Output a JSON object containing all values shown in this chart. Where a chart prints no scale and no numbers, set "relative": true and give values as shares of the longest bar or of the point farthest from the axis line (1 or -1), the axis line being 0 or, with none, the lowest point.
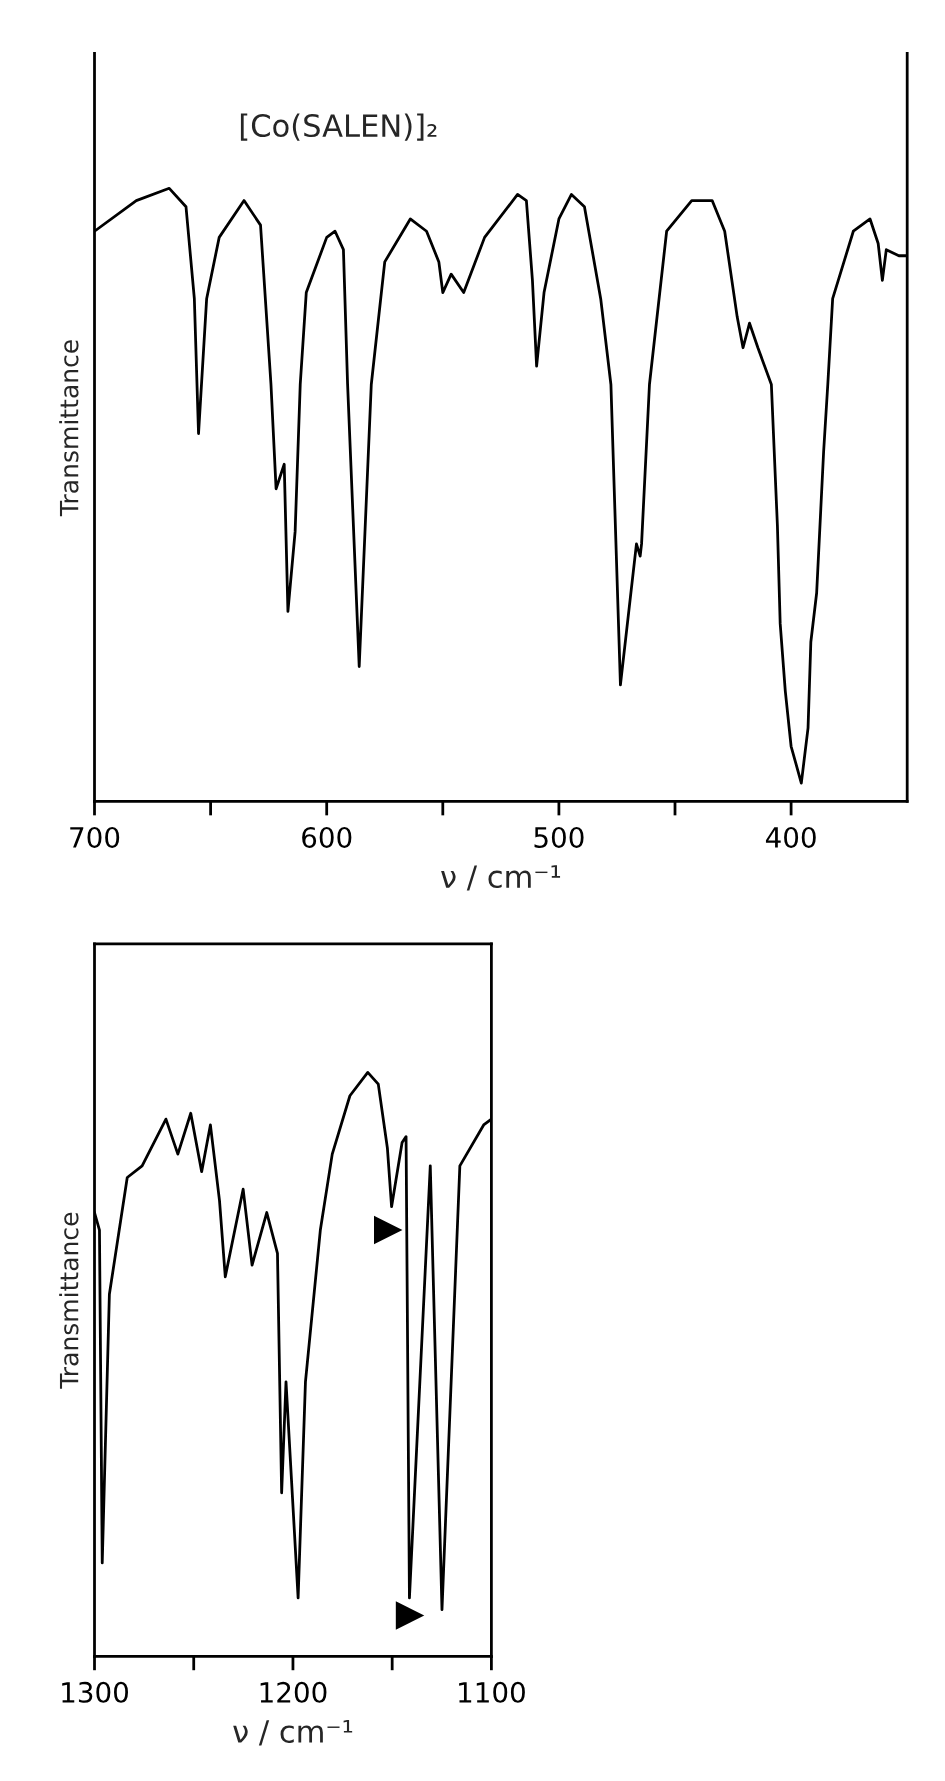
{
  "chart_data": [
    {
      "type": "line",
      "relative": true,
      "xlabel": "ν / cm⁻¹",
      "ylabel": "Transmittance",
      "xlim": [
        700,
        350
      ],
      "xticks": [
        700,
        {
          "value": 650,
          "label": null
        },
        600,
        {
          "value": 550,
          "label": null
        },
        500,
        {
          "value": 450,
          "label": null
        },
        400
      ],
      "annotations": [
        "[Co(SALEN)]₂"
      ],
      "x": [
        700,
        682,
        667.8,
        660.6,
        657,
        655.2,
        651.7,
        646.3,
        635.6,
        628.5,
        624,
        621.8,
        618.3,
        616.7,
        613.6,
        611.4,
        608.8,
        600,
        596.4,
        592.8,
        591,
        586,
        580.8,
        575,
        564,
        557,
        551.7,
        550,
        546.4,
        541,
        532,
        517.8,
        514,
        511.4,
        509.6,
        506.4,
        500,
        494.6,
        489,
        482,
        477.6,
        473.5,
        466.6,
        465,
        464.4,
        461,
        453.6,
        442.8,
        434,
        428.6,
        423.2,
        420.7,
        417.9,
        414.3,
        408.5,
        405.9,
        404.7,
        402.5,
        400,
        395.6,
        392.7,
        391.5,
        389,
        386,
        384.2,
        382.1,
        373.2,
        366,
        362.5,
        360.7,
        359,
        353.6,
        350
      ],
      "series": [
        {
          "color": "#000000",
          "values": [
            0.93,
            0.98,
            1.0,
            0.97,
            0.82,
            0.6,
            0.82,
            0.92,
            0.98,
            0.94,
            0.68,
            0.51,
            0.55,
            0.31,
            0.44,
            0.68,
            0.83,
            0.92,
            0.93,
            0.9,
            0.68,
            0.22,
            0.68,
            0.88,
            0.95,
            0.93,
            0.88,
            0.83,
            0.86,
            0.83,
            0.92,
            0.99,
            0.98,
            0.85,
            0.71,
            0.83,
            0.95,
            0.99,
            0.97,
            0.82,
            0.68,
            0.19,
            0.42,
            0.4,
            0.42,
            0.68,
            0.93,
            0.98,
            0.98,
            0.93,
            0.79,
            0.74,
            0.78,
            0.74,
            0.68,
            0.45,
            0.29,
            0.18,
            0.09,
            0.03,
            0.12,
            0.26,
            0.34,
            0.57,
            0.68,
            0.82,
            0.93,
            0.95,
            0.91,
            0.85,
            0.9,
            0.89,
            0.89
          ]
        }
      ]
    },
    {
      "type": "line",
      "relative": true,
      "xlabel": "ν / cm⁻¹",
      "ylabel": "Transmittance",
      "xlim": [
        1300,
        1100
      ],
      "xticks": [
        1300,
        {
          "value": 1250,
          "label": null
        },
        1200,
        {
          "value": 1150,
          "label": null
        },
        1100
      ],
      "x": [
        1300,
        1297.5,
        1296.1,
        1292.5,
        1283.5,
        1276,
        1264,
        1258,
        1251.5,
        1246,
        1241.6,
        1237,
        1234.1,
        1225.1,
        1220.6,
        1213.2,
        1207.8,
        1205.7,
        1203.5,
        1197.4,
        1193.7,
        1186.2,
        1180.2,
        1171.3,
        1162.3,
        1157,
        1152.4,
        1150.3,
        1145,
        1143,
        1141.3,
        1130.8,
        1124.9,
        1115.9,
        1103.9,
        1100
      ],
      "series": [
        {
          "color": "#000000",
          "values": [
            0.76,
            0.73,
            0.16,
            0.62,
            0.82,
            0.84,
            0.92,
            0.86,
            0.93,
            0.83,
            0.91,
            0.78,
            0.65,
            0.8,
            0.67,
            0.76,
            0.69,
            0.28,
            0.47,
            0.1,
            0.47,
            0.73,
            0.86,
            0.96,
            1.0,
            0.98,
            0.87,
            0.77,
            0.88,
            0.89,
            0.1,
            0.84,
            0.08,
            0.84,
            0.91,
            0.92
          ]
        },
        {
          "type": "scatter",
          "marker": "triangle",
          "color": "#000000",
          "x": [
            1152,
            1141
          ],
          "values": [
            0.73,
            0.07
          ]
        }
      ]
    }
  ]
}
